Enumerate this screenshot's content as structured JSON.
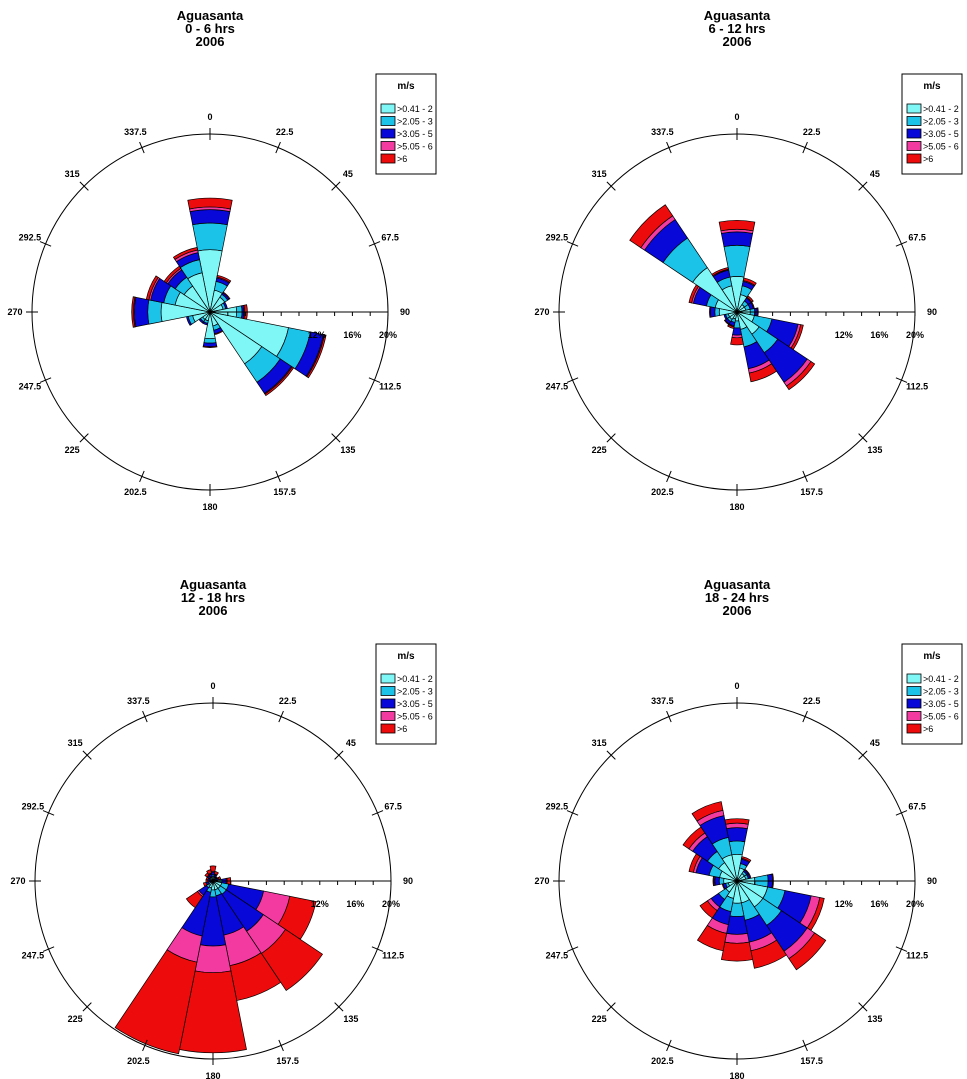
{
  "chart_data": [
    {
      "type": "wind-rose",
      "title": [
        "Aguasanta",
        "0 - 6 hrs",
        "2006"
      ],
      "directions": [
        "0",
        "22.5",
        "45",
        "67.5",
        "90",
        "112.5",
        "135",
        "157.5",
        "180",
        "202.5",
        "225",
        "247.5",
        "270",
        "292.5",
        "315",
        "337.5"
      ],
      "radial_ticks": [
        "12%",
        "16%",
        "20%"
      ],
      "radial_max": 20,
      "legend_title": "m/s",
      "bins": [
        ">0.41 - 2",
        ">2.05 - 3",
        ">3.05 - 5",
        ">5.05 - 6",
        ">6"
      ],
      "colors": [
        "#7ff7f7",
        "#1cc3e8",
        "#0808d8",
        "#f23aa0",
        "#ee0b0b"
      ],
      "values": [
        [
          7.0,
          3.0,
          1.5,
          0.3,
          1.0
        ],
        [
          2.5,
          1.0,
          0.4,
          0.1,
          0.2
        ],
        [
          2.0,
          0.4,
          0.2,
          0.0,
          0.1
        ],
        [
          1.5,
          0.3,
          0.2,
          0.0,
          0.0
        ],
        [
          3.0,
          0.6,
          0.2,
          0.1,
          0.3
        ],
        [
          9.0,
          2.5,
          1.5,
          0.1,
          0.2
        ],
        [
          7.0,
          2.5,
          1.5,
          0.1,
          0.2
        ],
        [
          1.6,
          0.5,
          0.4,
          0.0,
          0.1
        ],
        [
          3.0,
          0.5,
          0.4,
          0.0,
          0.1
        ],
        [
          1.0,
          0.3,
          0.2,
          0.0,
          0.0
        ],
        [
          1.0,
          0.3,
          0.2,
          0.0,
          0.0
        ],
        [
          2.0,
          0.5,
          0.2,
          0.0,
          0.0
        ],
        [
          5.5,
          1.5,
          1.5,
          0.1,
          0.2
        ],
        [
          4.0,
          1.3,
          1.5,
          0.2,
          0.3
        ],
        [
          3.5,
          1.2,
          1.0,
          0.2,
          0.3
        ],
        [
          4.5,
          1.5,
          0.8,
          0.3,
          0.3
        ]
      ]
    },
    {
      "type": "wind-rose",
      "title": [
        "Aguasanta",
        "6 - 12 hrs",
        "2006"
      ],
      "directions": [
        "0",
        "22.5",
        "45",
        "67.5",
        "90",
        "112.5",
        "135",
        "157.5",
        "180",
        "202.5",
        "225",
        "247.5",
        "270",
        "292.5",
        "315",
        "337.5"
      ],
      "radial_ticks": [
        "12%",
        "16%",
        "20%"
      ],
      "radial_max": 20,
      "legend_title": "m/s",
      "bins": [
        ">0.41 - 2",
        ">2.05 - 3",
        ">3.05 - 5",
        ">5.05 - 6",
        ">6"
      ],
      "colors": [
        "#7ff7f7",
        "#1cc3e8",
        "#0808d8",
        "#f23aa0",
        "#ee0b0b"
      ],
      "values": [
        [
          4.0,
          3.5,
          1.5,
          0.3,
          1.0
        ],
        [
          2.0,
          1.0,
          0.5,
          0.1,
          0.3
        ],
        [
          1.0,
          0.5,
          0.4,
          0.1,
          0.2
        ],
        [
          1.0,
          0.5,
          0.4,
          0.0,
          0.1
        ],
        [
          1.5,
          0.5,
          0.3,
          0.0,
          0.1
        ],
        [
          2.0,
          2.0,
          3.0,
          0.3,
          0.3
        ],
        [
          3.0,
          2.5,
          4.0,
          0.5,
          0.5
        ],
        [
          2.0,
          2.0,
          2.5,
          0.5,
          1.0
        ],
        [
          1.0,
          0.8,
          0.8,
          0.3,
          0.8
        ],
        [
          0.8,
          0.4,
          0.4,
          0.1,
          0.2
        ],
        [
          1.0,
          0.3,
          0.3,
          0.0,
          0.1
        ],
        [
          1.0,
          0.3,
          0.2,
          0.0,
          0.0
        ],
        [
          2.0,
          0.5,
          0.5,
          0.0,
          0.1
        ],
        [
          2.5,
          1.0,
          1.5,
          0.2,
          0.3
        ],
        [
          6.0,
          4.0,
          2.5,
          0.5,
          1.5
        ],
        [
          3.0,
          1.0,
          0.8,
          0.1,
          0.2
        ]
      ]
    },
    {
      "type": "wind-rose",
      "title": [
        "Aguasanta",
        "12  - 18 hrs",
        "2006"
      ],
      "directions": [
        "0",
        "22.5",
        "45",
        "67.5",
        "90",
        "112.5",
        "135",
        "157.5",
        "180",
        "202.5",
        "225",
        "247.5",
        "270",
        "292.5",
        "315",
        "337.5"
      ],
      "radial_ticks": [
        "12%",
        "16%",
        "20%"
      ],
      "radial_max": 20,
      "legend_title": "m/s",
      "bins": [
        ">0.41 - 2",
        ">2.05 - 3",
        ">3.05 - 5",
        ">5.05 - 6",
        ">6"
      ],
      "colors": [
        "#7ff7f7",
        "#1cc3e8",
        "#0808d8",
        "#f23aa0",
        "#ee0b0b"
      ],
      "values": [
        [
          0.5,
          0.2,
          0.3,
          0.1,
          0.6
        ],
        [
          0.4,
          0.1,
          0.2,
          0.1,
          0.3
        ],
        [
          0.3,
          0.1,
          0.1,
          0.0,
          0.1
        ],
        [
          0.3,
          0.1,
          0.2,
          0.1,
          0.2
        ],
        [
          0.8,
          0.2,
          0.5,
          0.1,
          0.4
        ],
        [
          1.0,
          0.8,
          4.0,
          3.0,
          3.0
        ],
        [
          1.0,
          0.8,
          5.0,
          3.0,
          5.0
        ],
        [
          1.0,
          0.7,
          4.5,
          3.5,
          4.0
        ],
        [
          1.0,
          0.8,
          5.5,
          3.0,
          9.0
        ],
        [
          0.8,
          0.5,
          5.0,
          3.0,
          10.5
        ],
        [
          0.6,
          0.3,
          1.0,
          0.2,
          1.5
        ],
        [
          0.3,
          0.2,
          0.3,
          0.0,
          0.3
        ],
        [
          0.3,
          0.1,
          0.2,
          0.0,
          0.2
        ],
        [
          0.3,
          0.1,
          0.2,
          0.0,
          0.2
        ],
        [
          0.4,
          0.1,
          0.2,
          0.1,
          0.3
        ],
        [
          0.4,
          0.1,
          0.3,
          0.1,
          0.4
        ]
      ]
    },
    {
      "type": "wind-rose",
      "title": [
        "Aguasanta",
        "18 - 24 hrs",
        "2006"
      ],
      "directions": [
        "0",
        "22.5",
        "45",
        "67.5",
        "90",
        "112.5",
        "135",
        "157.5",
        "180",
        "202.5",
        "225",
        "247.5",
        "270",
        "292.5",
        "315",
        "337.5"
      ],
      "radial_ticks": [
        "12%",
        "16%",
        "20%"
      ],
      "radial_max": 20,
      "legend_title": "m/s",
      "bins": [
        ">0.41 - 2",
        ">2.05 - 3",
        ">3.05 - 5",
        ">5.05 - 6",
        ">6"
      ],
      "colors": [
        "#7ff7f7",
        "#1cc3e8",
        "#0808d8",
        "#f23aa0",
        "#ee0b0b"
      ],
      "values": [
        [
          3.0,
          1.5,
          1.5,
          0.5,
          0.5
        ],
        [
          1.5,
          0.5,
          0.5,
          0.1,
          0.2
        ],
        [
          1.0,
          0.3,
          0.2,
          0.0,
          0.1
        ],
        [
          1.0,
          0.3,
          0.2,
          0.0,
          0.1
        ],
        [
          2.0,
          1.5,
          0.5,
          0.0,
          0.1
        ],
        [
          3.5,
          2.0,
          3.0,
          1.0,
          0.5
        ],
        [
          3.5,
          2.5,
          3.5,
          1.0,
          1.5
        ],
        [
          2.5,
          2.0,
          2.5,
          1.0,
          2.0
        ],
        [
          2.5,
          1.5,
          2.0,
          1.0,
          2.0
        ],
        [
          2.0,
          1.5,
          1.5,
          1.0,
          2.0
        ],
        [
          1.5,
          1.0,
          1.0,
          0.5,
          1.0
        ],
        [
          1.0,
          0.3,
          0.3,
          0.0,
          0.1
        ],
        [
          1.5,
          0.5,
          0.5,
          0.1,
          0.1
        ],
        [
          2.0,
          1.2,
          1.5,
          0.3,
          0.5
        ],
        [
          2.5,
          1.5,
          2.0,
          0.5,
          0.8
        ],
        [
          3.0,
          2.0,
          2.5,
          0.6,
          1.0
        ]
      ]
    }
  ]
}
